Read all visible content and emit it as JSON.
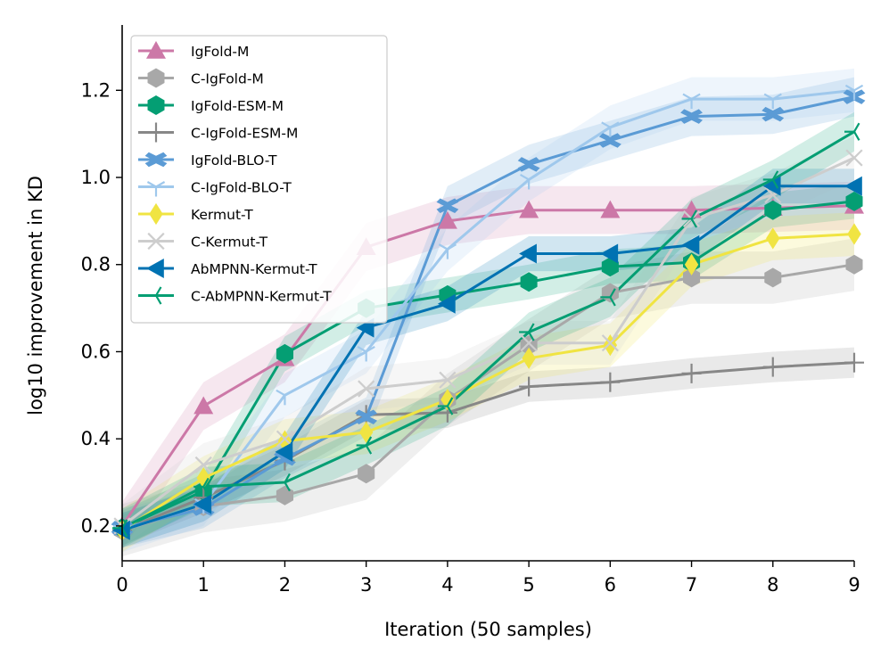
{
  "chart_data": {
    "type": "line",
    "title": "",
    "xlabel": "Iteration (50 samples)",
    "ylabel": "log10 improvement in KD",
    "xlim": [
      0,
      9
    ],
    "ylim": [
      0.12,
      1.35
    ],
    "x": [
      0,
      1,
      2,
      3,
      4,
      5,
      6,
      7,
      8,
      9
    ],
    "xticks": [
      "0",
      "1",
      "2",
      "3",
      "4",
      "5",
      "6",
      "7",
      "8",
      "9"
    ],
    "yticks": [
      0.2,
      0.4,
      0.6,
      0.8,
      1.0,
      1.2
    ],
    "ytick_labels": [
      "0.2",
      "0.4",
      "0.6",
      "0.8",
      "1.0",
      "1.2"
    ],
    "grid": false,
    "legend_position": "top-left",
    "series": [
      {
        "name": "IgFold-M",
        "color": "#cc78a7",
        "marker": "triangle-up",
        "values": [
          0.2,
          0.475,
          0.585,
          0.84,
          0.9,
          0.925,
          0.925,
          0.925,
          0.93,
          0.935
        ],
        "band": 0.055
      },
      {
        "name": "C-IgFold-M",
        "color": "#a8a8a8",
        "marker": "hexagon",
        "values": [
          0.19,
          0.245,
          0.27,
          0.32,
          0.49,
          0.615,
          0.735,
          0.77,
          0.77,
          0.8
        ],
        "band": 0.06
      },
      {
        "name": "IgFold-ESM-M",
        "color": "#049e73",
        "marker": "hexagon",
        "values": [
          0.195,
          0.28,
          0.595,
          0.7,
          0.73,
          0.76,
          0.795,
          0.805,
          0.925,
          0.945
        ],
        "band": 0.04
      },
      {
        "name": "C-IgFold-ESM-M",
        "color": "#878787",
        "marker": "plus",
        "values": [
          0.19,
          0.265,
          0.35,
          0.455,
          0.46,
          0.52,
          0.53,
          0.55,
          0.565,
          0.575
        ],
        "band": 0.035
      },
      {
        "name": "IgFold-BLO-T",
        "color": "#5b9bd5",
        "marker": "x-filled",
        "values": [
          0.195,
          0.24,
          0.355,
          0.45,
          0.935,
          1.03,
          1.085,
          1.14,
          1.145,
          1.185
        ],
        "band": 0.045
      },
      {
        "name": "C-IgFold-BLO-T",
        "color": "#9fc8ec",
        "marker": "tri-down",
        "values": [
          0.19,
          0.25,
          0.5,
          0.6,
          0.835,
          0.995,
          1.115,
          1.18,
          1.18,
          1.2
        ],
        "band": 0.05
      },
      {
        "name": "Kermut-T",
        "color": "#f0e442",
        "marker": "diamond",
        "values": [
          0.19,
          0.31,
          0.395,
          0.415,
          0.49,
          0.585,
          0.615,
          0.8,
          0.86,
          0.87
        ],
        "band": 0.05
      },
      {
        "name": "C-Kermut-T",
        "color": "#cdcdcd",
        "marker": "x",
        "values": [
          0.2,
          0.34,
          0.4,
          0.515,
          0.535,
          0.62,
          0.62,
          0.905,
          0.96,
          1.045
        ],
        "band": 0.05
      },
      {
        "name": "AbMPNN-Kermut-T",
        "color": "#0072b2",
        "marker": "triangle-left",
        "values": [
          0.19,
          0.25,
          0.37,
          0.655,
          0.71,
          0.825,
          0.825,
          0.845,
          0.98,
          0.98
        ],
        "band": 0.04
      },
      {
        "name": "C-AbMPNN-Kermut-T",
        "color": "#049e73",
        "marker": "tri-left",
        "values": [
          0.195,
          0.29,
          0.3,
          0.385,
          0.475,
          0.645,
          0.725,
          0.905,
          0.995,
          1.105
        ],
        "band": 0.045
      }
    ]
  }
}
